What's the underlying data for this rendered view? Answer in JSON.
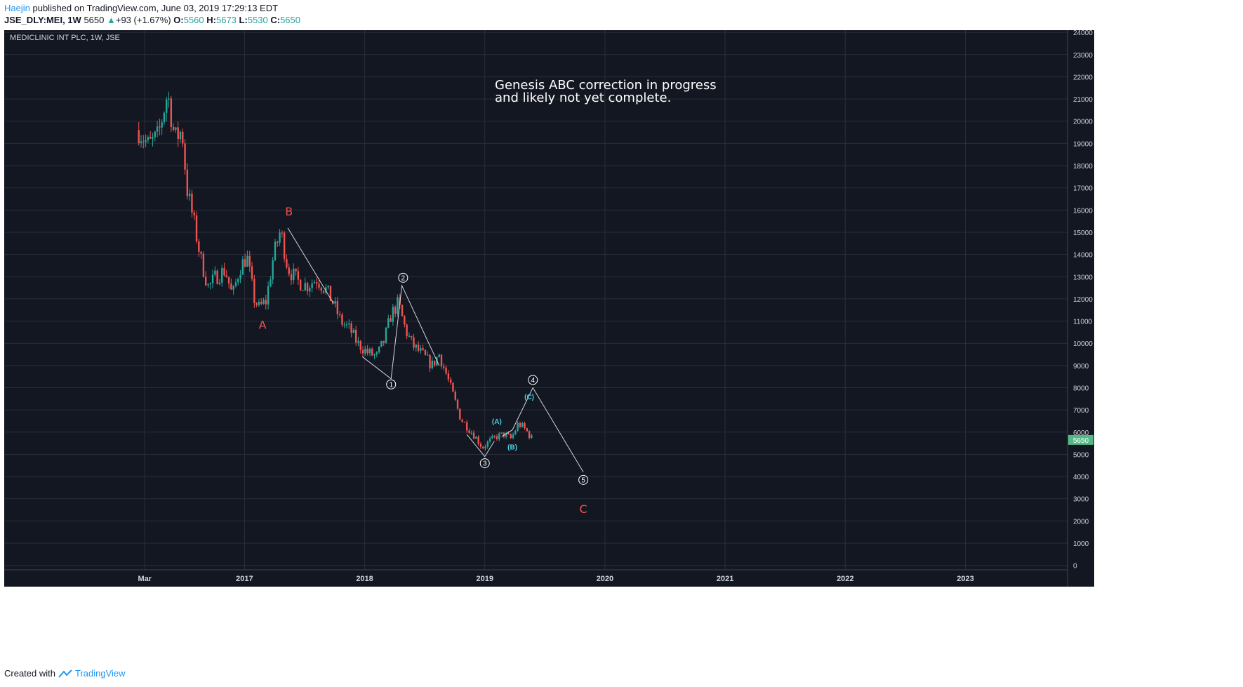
{
  "header": {
    "author": "Haejin",
    "published_text": "published on TradingView.com, June 03, 2019 17:29:13 EDT",
    "symbol": "JSE_DLY:MEI, 1W",
    "last": "5650",
    "change": "+93 (+1.67%)",
    "o_label": "O:",
    "o_value": "5560",
    "h_label": "H:",
    "h_value": "5673",
    "l_label": "L:",
    "l_value": "5530",
    "c_label": "C:",
    "c_value": "5650"
  },
  "footer": {
    "created_with": "Created with",
    "brand": "TradingView"
  },
  "colors": {
    "background": "#131722",
    "up": "#26a69a",
    "down": "#ef5350",
    "grid": "#2a2e39",
    "axis_text": "#d1d4dc",
    "wave_cyan": "#4dd0e1",
    "label_red": "#ef5350",
    "price_badge": "#53b987"
  },
  "chart_data": {
    "type": "candlestick",
    "title": "MEDICLINIC INT PLC, 1W, JSE",
    "annotation": [
      "Genesis ABC correction in progress",
      "and likely not yet complete."
    ],
    "y_ticks": [
      0,
      1000,
      2000,
      3000,
      4000,
      5000,
      6000,
      7000,
      8000,
      9000,
      10000,
      11000,
      12000,
      13000,
      14000,
      15000,
      16000,
      17000,
      18000,
      19000,
      20000,
      21000,
      22000,
      23000,
      24000
    ],
    "ylim": [
      -200,
      24100
    ],
    "x_ticks": [
      {
        "label": "Mar",
        "t": 2016.17
      },
      {
        "label": "2017",
        "t": 2017.0
      },
      {
        "label": "2018",
        "t": 2018.0
      },
      {
        "label": "2019",
        "t": 2019.0
      },
      {
        "label": "2020",
        "t": 2020.0
      },
      {
        "label": "2021",
        "t": 2021.0
      },
      {
        "label": "2022",
        "t": 2022.0
      },
      {
        "label": "2023",
        "t": 2023.0
      }
    ],
    "xlim": [
      2015.0,
      2023.85
    ],
    "last_price": {
      "label": "5650",
      "value": 5650
    },
    "price_path": [
      [
        2016.12,
        19600
      ],
      [
        2016.2,
        18900
      ],
      [
        2016.28,
        19300
      ],
      [
        2016.36,
        21300
      ],
      [
        2016.42,
        19200
      ],
      [
        2016.48,
        19600
      ],
      [
        2016.52,
        17000
      ],
      [
        2016.58,
        15400
      ],
      [
        2016.64,
        13700
      ],
      [
        2016.7,
        12500
      ],
      [
        2016.76,
        13000
      ],
      [
        2016.84,
        13300
      ],
      [
        2016.9,
        12100
      ],
      [
        2016.96,
        13400
      ],
      [
        2017.02,
        13900
      ],
      [
        2017.08,
        12000
      ],
      [
        2017.12,
        11600
      ],
      [
        2017.18,
        11900
      ],
      [
        2017.24,
        13900
      ],
      [
        2017.3,
        15100
      ],
      [
        2017.36,
        13400
      ],
      [
        2017.44,
        12800
      ],
      [
        2017.52,
        12600
      ],
      [
        2017.6,
        12900
      ],
      [
        2017.68,
        12400
      ],
      [
        2017.74,
        11800
      ],
      [
        2017.8,
        11000
      ],
      [
        2017.88,
        10600
      ],
      [
        2017.94,
        10000
      ],
      [
        2018.02,
        9600
      ],
      [
        2018.1,
        9400
      ],
      [
        2018.16,
        10100
      ],
      [
        2018.22,
        11300
      ],
      [
        2018.28,
        11800
      ],
      [
        2018.34,
        10600
      ],
      [
        2018.4,
        9900
      ],
      [
        2018.48,
        9500
      ],
      [
        2018.56,
        9000
      ],
      [
        2018.62,
        9500
      ],
      [
        2018.68,
        8600
      ],
      [
        2018.74,
        7600
      ],
      [
        2018.8,
        6600
      ],
      [
        2018.86,
        6200
      ],
      [
        2018.92,
        5800
      ],
      [
        2018.98,
        5300
      ],
      [
        2019.04,
        5600
      ],
      [
        2019.1,
        5800
      ],
      [
        2019.16,
        5900
      ],
      [
        2019.22,
        5700
      ],
      [
        2019.28,
        6400
      ],
      [
        2019.34,
        6100
      ],
      [
        2019.4,
        5650
      ]
    ],
    "wave_lines": [
      {
        "points": [
          [
            2017.36,
            15200
          ],
          [
            2017.74,
            11800
          ]
        ]
      },
      {
        "points": [
          [
            2017.98,
            9400
          ],
          [
            2018.22,
            8400
          ],
          [
            2018.31,
            12600
          ],
          [
            2018.62,
            9000
          ]
        ]
      },
      {
        "points": [
          [
            2018.85,
            5900
          ],
          [
            2019.0,
            4900
          ],
          [
            2019.08,
            5600
          ]
        ]
      },
      {
        "points": [
          [
            2019.14,
            5800
          ],
          [
            2019.23,
            6100
          ],
          [
            2019.4,
            8000
          ],
          [
            2019.82,
            4200
          ]
        ]
      }
    ],
    "wave_labels": [
      {
        "text": "A",
        "t": 2017.15,
        "v": 10850,
        "style": "red"
      },
      {
        "text": "B",
        "t": 2017.37,
        "v": 15950,
        "style": "red"
      },
      {
        "text": "C",
        "t": 2019.82,
        "v": 2550,
        "style": "red"
      },
      {
        "text": "1",
        "t": 2018.22,
        "v": 8150,
        "style": "circle"
      },
      {
        "text": "2",
        "t": 2018.32,
        "v": 12950,
        "style": "circle"
      },
      {
        "text": "3",
        "t": 2019.0,
        "v": 4600,
        "style": "circle"
      },
      {
        "text": "4",
        "t": 2019.4,
        "v": 8350,
        "style": "circle"
      },
      {
        "text": "5",
        "t": 2019.82,
        "v": 3850,
        "style": "circle"
      },
      {
        "text": "(A)",
        "t": 2019.1,
        "v": 6500,
        "style": "cyan"
      },
      {
        "text": "(B)",
        "t": 2019.23,
        "v": 5350,
        "style": "cyan"
      },
      {
        "text": "(C)",
        "t": 2019.37,
        "v": 7600,
        "style": "cyan"
      }
    ]
  }
}
